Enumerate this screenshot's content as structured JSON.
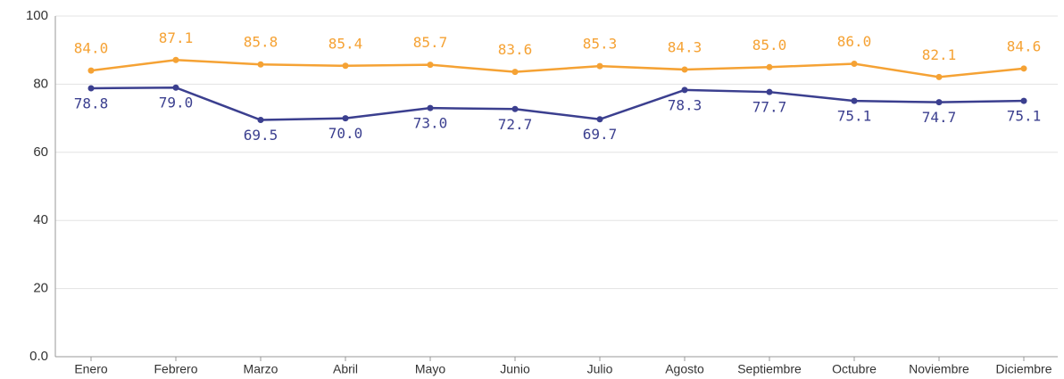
{
  "chart_data": {
    "type": "line",
    "categories": [
      "Enero",
      "Febrero",
      "Marzo",
      "Abril",
      "Mayo",
      "Junio",
      "Julio",
      "Agosto",
      "Septiembre",
      "Octubre",
      "Noviembre",
      "Diciembre"
    ],
    "series": [
      {
        "color": "#f5a234",
        "values": [
          84.0,
          87.1,
          85.8,
          85.4,
          85.7,
          83.6,
          85.3,
          84.3,
          85.0,
          86.0,
          82.1,
          84.6
        ],
        "value_labels": [
          "84.0",
          "87.1",
          "85.8",
          "85.4",
          "85.7",
          "83.6",
          "85.3",
          "84.3",
          "85.0",
          "86.0",
          "82.1",
          "84.6"
        ]
      },
      {
        "color": "#3b3f8f",
        "values": [
          78.8,
          79.0,
          69.5,
          70.0,
          73.0,
          72.7,
          69.7,
          78.3,
          77.7,
          75.1,
          74.7,
          75.1
        ],
        "value_labels": [
          "78.8",
          "79.0",
          "69.5",
          "70.0",
          "73.0",
          "72.7",
          "69.7",
          "78.3",
          "77.7",
          "75.1",
          "74.7",
          "75.1"
        ]
      }
    ],
    "ylim": [
      0,
      100
    ],
    "yticks": [
      {
        "value": 0,
        "label": "0.0"
      },
      20,
      40,
      60,
      80,
      100
    ],
    "grid": true
  }
}
